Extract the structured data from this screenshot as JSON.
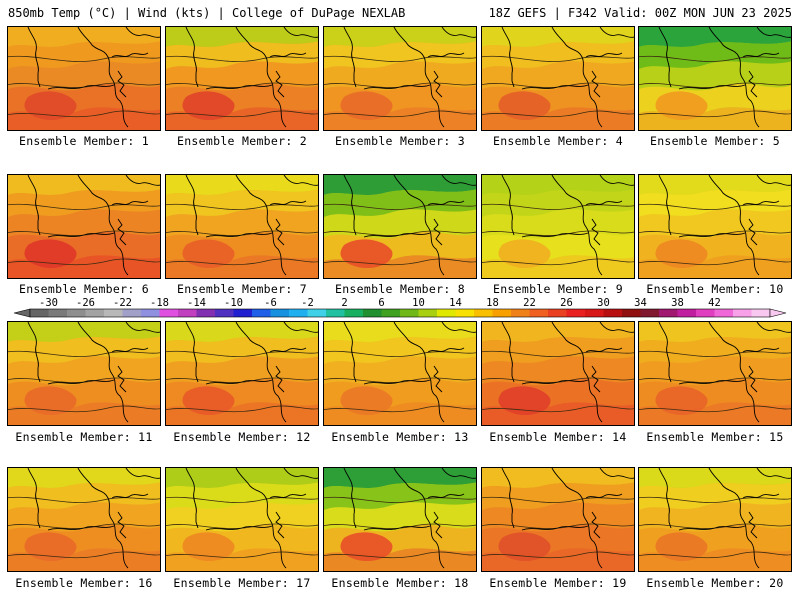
{
  "header": {
    "left": "850mb Temp (°C) | Wind (kts) | College of DuPage NEXLAB",
    "right": "18Z GEFS | F342 Valid: 00Z MON JUN 23 2025"
  },
  "colorbar": {
    "labels": [
      "-30",
      "-26",
      "-22",
      "-18",
      "-14",
      "-10",
      "-6",
      "-2",
      "2",
      "6",
      "10",
      "14",
      "18",
      "22",
      "26",
      "30",
      "34",
      "38",
      "42"
    ],
    "colors": [
      "#666666",
      "#7a7a7a",
      "#8e8e8e",
      "#a3a3a3",
      "#b8b8b8",
      "#a0a0c8",
      "#9090e0",
      "#e050e0",
      "#c040c0",
      "#8030b0",
      "#5030c0",
      "#2020d0",
      "#2060e8",
      "#1890e0",
      "#20b0f0",
      "#40d0e8",
      "#20c0a0",
      "#18b060",
      "#209030",
      "#40a020",
      "#70b818",
      "#a8d010",
      "#e0e800",
      "#f8e000",
      "#f8c000",
      "#f8a000",
      "#f08018",
      "#f06020",
      "#e84020",
      "#e82020",
      "#d81818",
      "#b81010",
      "#901010",
      "#801830",
      "#a01870",
      "#c020a0",
      "#e040c0",
      "#f068d8",
      "#f8a0e8",
      "#f8c8f0"
    ]
  },
  "panels": [
    {
      "caption": "Ensemble Member: 1",
      "colors": [
        "#f0b020",
        "#f09a20",
        "#ea8a24",
        "#e87028",
        "#e85a28",
        "#e04a28"
      ]
    },
    {
      "caption": "Ensemble Member: 2",
      "colors": [
        "#b8d018",
        "#f0c020",
        "#f09820",
        "#ec7e26",
        "#e86028",
        "#e04428"
      ]
    },
    {
      "caption": "Ensemble Member: 3",
      "colors": [
        "#c8d418",
        "#f0c820",
        "#f0aa20",
        "#f09422",
        "#ec7e26",
        "#e86a28"
      ]
    },
    {
      "caption": "Ensemble Member: 4",
      "colors": [
        "#e0d81c",
        "#f0c020",
        "#f0a820",
        "#ee9022",
        "#ea7826",
        "#e46028"
      ]
    },
    {
      "caption": "Ensemble Member: 5",
      "colors": [
        "#20a040",
        "#68b818",
        "#b8d018",
        "#f0d020",
        "#f0b020",
        "#f09a20"
      ]
    },
    {
      "caption": "Ensemble Member: 6",
      "colors": [
        "#f0c020",
        "#f0a020",
        "#ec8424",
        "#e86a28",
        "#e85028",
        "#e03828"
      ]
    },
    {
      "caption": "Ensemble Member: 7",
      "colors": [
        "#e8e01c",
        "#f0c820",
        "#f0a420",
        "#ee8c22",
        "#ea7426",
        "#e86028"
      ]
    },
    {
      "caption": "Ensemble Member: 8",
      "colors": [
        "#209838",
        "#78bc18",
        "#d0d81a",
        "#f0b820",
        "#ec8424",
        "#e85028"
      ]
    },
    {
      "caption": "Ensemble Member: 9",
      "colors": [
        "#b0d018",
        "#c0d418",
        "#d8dc1a",
        "#e8e01c",
        "#f0c820",
        "#f0b020"
      ]
    },
    {
      "caption": "Ensemble Member: 10",
      "colors": [
        "#e0dc1c",
        "#f0e020",
        "#f0c820",
        "#f0b020",
        "#f09c20",
        "#ee8822"
      ]
    },
    {
      "caption": "Ensemble Member: 11",
      "colors": [
        "#c0d418",
        "#f0c020",
        "#f0a420",
        "#ee8c22",
        "#ea7826",
        "#e86a28"
      ]
    },
    {
      "caption": "Ensemble Member: 12",
      "colors": [
        "#d8dc1a",
        "#f0c020",
        "#f0a020",
        "#ee8822",
        "#ea7026",
        "#e85a28"
      ]
    },
    {
      "caption": "Ensemble Member: 13",
      "colors": [
        "#e8e01c",
        "#f0c820",
        "#f0b020",
        "#f09a20",
        "#ee8822",
        "#ea7826"
      ]
    },
    {
      "caption": "Ensemble Member: 14",
      "colors": [
        "#f0b820",
        "#f0a020",
        "#ee8822",
        "#ea7026",
        "#e85828",
        "#e04028"
      ]
    },
    {
      "caption": "Ensemble Member: 15",
      "colors": [
        "#f0c820",
        "#f0b020",
        "#f09c20",
        "#ee8a22",
        "#ea7626",
        "#e86428"
      ]
    },
    {
      "caption": "Ensemble Member: 16",
      "colors": [
        "#e0dc1c",
        "#f0c020",
        "#f0a420",
        "#ee8c22",
        "#ea7a26",
        "#e86a28"
      ]
    },
    {
      "caption": "Ensemble Member: 17",
      "colors": [
        "#a8cc18",
        "#d8dc1a",
        "#f0d020",
        "#f0b420",
        "#f09c20",
        "#ee8822"
      ]
    },
    {
      "caption": "Ensemble Member: 18",
      "colors": [
        "#209838",
        "#80c018",
        "#d8dc1a",
        "#f0b020",
        "#ec8024",
        "#e85028"
      ]
    },
    {
      "caption": "Ensemble Member: 19",
      "colors": [
        "#f0c020",
        "#f0a020",
        "#ee8822",
        "#ea7426",
        "#e86428",
        "#e05028"
      ]
    },
    {
      "caption": "Ensemble Member: 20",
      "colors": [
        "#d8dc1a",
        "#f0d020",
        "#f0b420",
        "#f09e20",
        "#ee8a22",
        "#ea7626"
      ]
    }
  ],
  "map": {
    "coastline_color": "#000000",
    "isoline_color": "#3a2a10"
  }
}
